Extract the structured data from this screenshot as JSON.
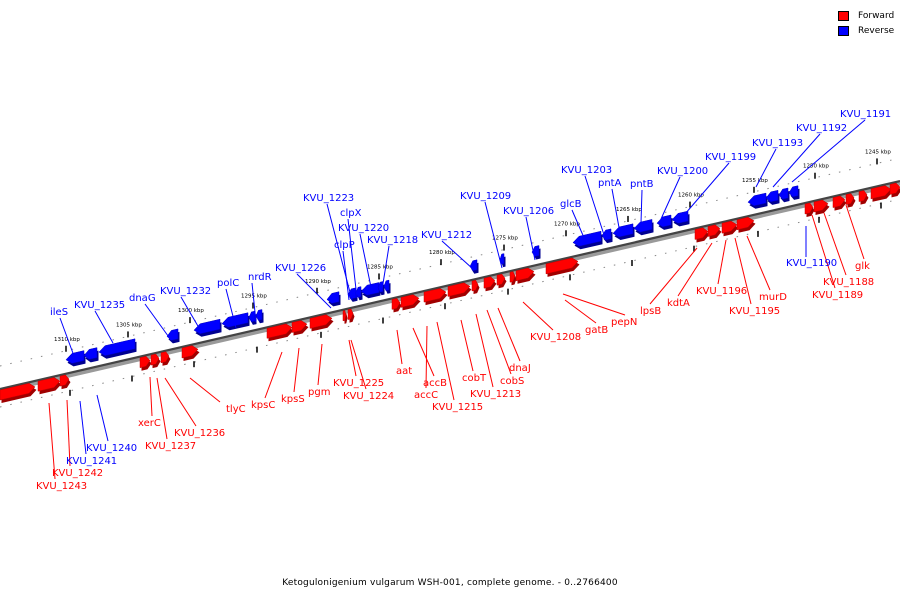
{
  "legend": [
    {
      "label": "Forward",
      "color": "#ff0000"
    },
    {
      "label": "Reverse",
      "color": "#0000ff"
    }
  ],
  "caption": "Ketogulonigenium vulgarum WSH-001, complete genome. - 0..2766400",
  "axis": {
    "tick_labels": [
      "1310 kbp",
      "1305 kbp",
      "1300 kbp",
      "1295 kbp",
      "1290 kbp",
      "1285 kbp",
      "1280 kbp",
      "1275 kbp",
      "1270 kbp",
      "1265 kbp",
      "1260 kbp",
      "1255 kbp",
      "1250 kbp",
      "1245 kbp"
    ]
  },
  "reverse_genes": [
    "ileS",
    "KVU_1235",
    "dnaG",
    "KVU_1232",
    "polC",
    "nrdR",
    "KVU_1226",
    "clpP",
    "clpX",
    "KVU_1223",
    "KVU_1220",
    "KVU_1218",
    "KVU_1212",
    "KVU_1209",
    "KVU_1206",
    "glcB",
    "KVU_1203",
    "pntA",
    "pntB",
    "KVU_1200",
    "KVU_1199",
    "KVU_1193",
    "KVU_1192",
    "KVU_1191",
    "KVU_1190",
    "KVU_1240",
    "KVU_1241"
  ],
  "forward_genes": [
    "KVU_1242",
    "KVU_1243",
    "xerC",
    "KVU_1237",
    "KVU_1236",
    "tlyC",
    "kpsC",
    "kpsS",
    "pgm",
    "KVU_1225",
    "KVU_1224",
    "aat",
    "accB",
    "accC",
    "KVU_1215",
    "cobT",
    "KVU_1213",
    "cobS",
    "dnaJ",
    "KVU_1208",
    "gatB",
    "pepN",
    "lpsB",
    "kdtA",
    "KVU_1196",
    "KVU_1195",
    "murD",
    "KVU_1188",
    "KVU_1189",
    "glk"
  ]
}
